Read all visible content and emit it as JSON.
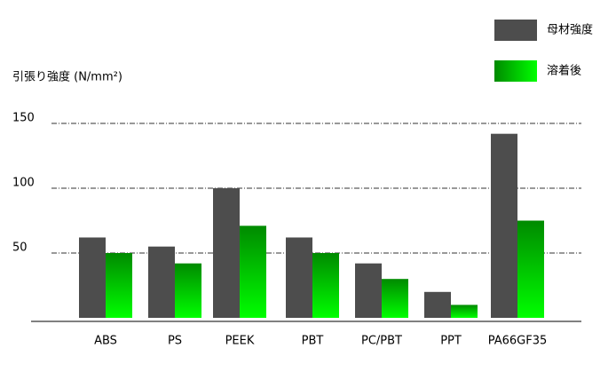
{
  "chart_data": {
    "type": "bar",
    "y_label": "引張り強度 (N/mm²)",
    "categories": [
      "ABS",
      "PS",
      "PEEK",
      "PBT",
      "PC/PBT",
      "PPT",
      "PA66GF35"
    ],
    "series": [
      {
        "name": "母材強度",
        "color": "#4d4d4d",
        "values": [
          62,
          55,
          100,
          62,
          42,
          20,
          142
        ]
      },
      {
        "name": "溶着後",
        "color": "#00ff00",
        "values": [
          50,
          42,
          71,
          50,
          30,
          10,
          75
        ]
      }
    ],
    "ylim": [
      0,
      150
    ],
    "yticks": [
      50,
      100,
      150
    ],
    "grid": true
  }
}
